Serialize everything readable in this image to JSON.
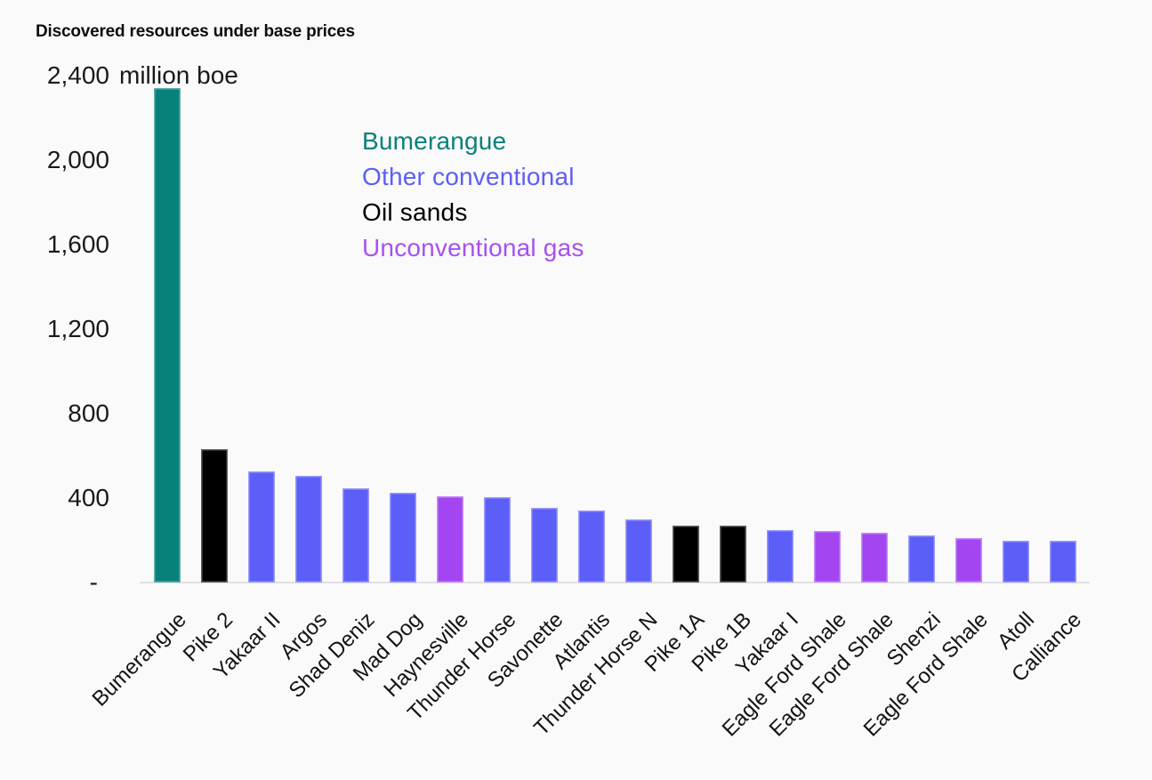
{
  "background_color": "#FAFAFA",
  "chart_data": {
    "type": "bar",
    "title": "Discovered resources under base prices",
    "unit": "million boe",
    "xlabel": "",
    "ylabel": "million boe",
    "ylim": [
      0,
      2400
    ],
    "grid": false,
    "legend_position": "inside-top-left",
    "categories": [
      "Bumerangue",
      "Pike 2",
      "Yakaar II",
      "Argos",
      "Shad Deniz",
      "Mad Dog",
      "Haynesville",
      "Thunder Horse",
      "Savonette",
      "Atlantis",
      "Thunder Horse N",
      "Pike 1A",
      "Pike 1B",
      "Yakaar I",
      "Eagle Ford Shale",
      "Eagle Ford Shale",
      "Shenzi",
      "Eagle Ford Shale",
      "Atoll",
      "Calliance"
    ],
    "values": [
      2340,
      630,
      525,
      505,
      445,
      425,
      410,
      405,
      355,
      340,
      300,
      270,
      270,
      250,
      245,
      235,
      225,
      210,
      200,
      200
    ],
    "groups": [
      "Bumerangue",
      "Oil sands",
      "Other conventional",
      "Other conventional",
      "Other conventional",
      "Other conventional",
      "Unconventional gas",
      "Other conventional",
      "Other conventional",
      "Other conventional",
      "Other conventional",
      "Oil sands",
      "Oil sands",
      "Other conventional",
      "Unconventional gas",
      "Unconventional gas",
      "Other conventional",
      "Unconventional gas",
      "Other conventional",
      "Other conventional"
    ],
    "group_colors": {
      "Bumerangue": "#08817A",
      "Other conventional": "#5C5EF8",
      "Oil sands": "#000000",
      "Unconventional gas": "#A346F2"
    }
  },
  "y_axis": {
    "unit_label": "million boe",
    "ticks": [
      {
        "label": "2,400",
        "value": 2400
      },
      {
        "label": "2,000",
        "value": 2000
      },
      {
        "label": "1,600",
        "value": 1600
      },
      {
        "label": "1,200",
        "value": 1200
      },
      {
        "label": "800",
        "value": 800
      },
      {
        "label": "400",
        "value": 400
      },
      {
        "label": "-",
        "value": 0
      }
    ]
  },
  "legend": {
    "items": [
      {
        "label": "Bumerangue",
        "color": "#08817A"
      },
      {
        "label": "Other conventional",
        "color": "#5C5EF8"
      },
      {
        "label": "Oil sands",
        "color": "#000000"
      },
      {
        "label": "Unconventional gas",
        "color": "#A84FF2"
      }
    ]
  }
}
